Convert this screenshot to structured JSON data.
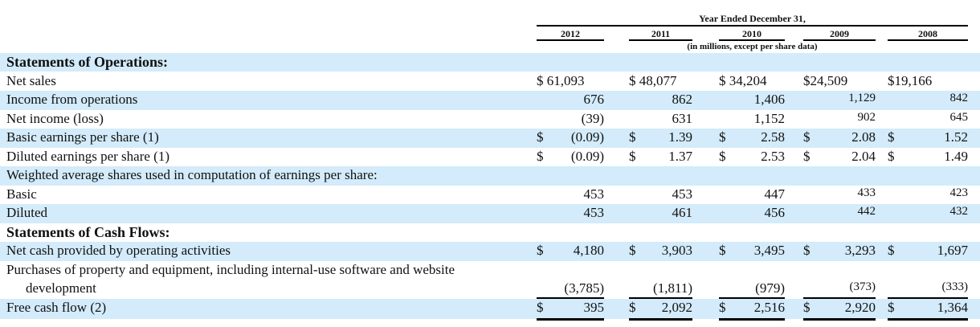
{
  "header": {
    "period": "Year Ended December 31,",
    "years": [
      "2012",
      "2011",
      "2010",
      "2009",
      "2008"
    ],
    "units": "(in millions, except per share data)"
  },
  "rows": [
    {
      "label": "Statements of Operations:",
      "bold": true,
      "values": []
    },
    {
      "label": "Net sales",
      "values": [
        "$ 61,093",
        "$ 48,077",
        "$  34,204",
        "$24,509",
        "$19,166"
      ]
    },
    {
      "label": "Income from operations",
      "values": [
        "676",
        "862",
        "1,406",
        "1,129",
        "842"
      ]
    },
    {
      "label": "Net income (loss)",
      "values": [
        "(39)",
        "631",
        "1,152",
        "902",
        "645"
      ]
    },
    {
      "label": "Basic earnings per share (1)",
      "dollar": true,
      "values": [
        "(0.09)",
        "1.39",
        "2.58",
        "2.08",
        "1.52"
      ]
    },
    {
      "label": "Diluted earnings per share (1)",
      "dollar": true,
      "values": [
        "(0.09)",
        "1.37",
        "2.53",
        "2.04",
        "1.49"
      ]
    },
    {
      "label": "Weighted average shares used in computation of earnings per share:",
      "values": []
    },
    {
      "label": "Basic",
      "values": [
        "453",
        "453",
        "447",
        "433",
        "423"
      ]
    },
    {
      "label": "Diluted",
      "values": [
        "453",
        "461",
        "456",
        "442",
        "432"
      ]
    },
    {
      "label": "Statements of Cash Flows:",
      "bold": true,
      "values": []
    },
    {
      "label": "Net cash provided by operating activities",
      "dollar": true,
      "values": [
        "4,180",
        "3,903",
        "3,495",
        "3,293",
        "1,697"
      ]
    },
    {
      "label": "Purchases of property and equipment, including internal-use software and website",
      "label2": "development",
      "values": [
        "(3,785)",
        "(1,811)",
        "(979)",
        "(373)",
        "(333)"
      ]
    },
    {
      "label": "Free cash flow (2)",
      "dollar": true,
      "values": [
        "395",
        "2,092",
        "2,516",
        "2,920",
        "1,364"
      ]
    }
  ]
}
